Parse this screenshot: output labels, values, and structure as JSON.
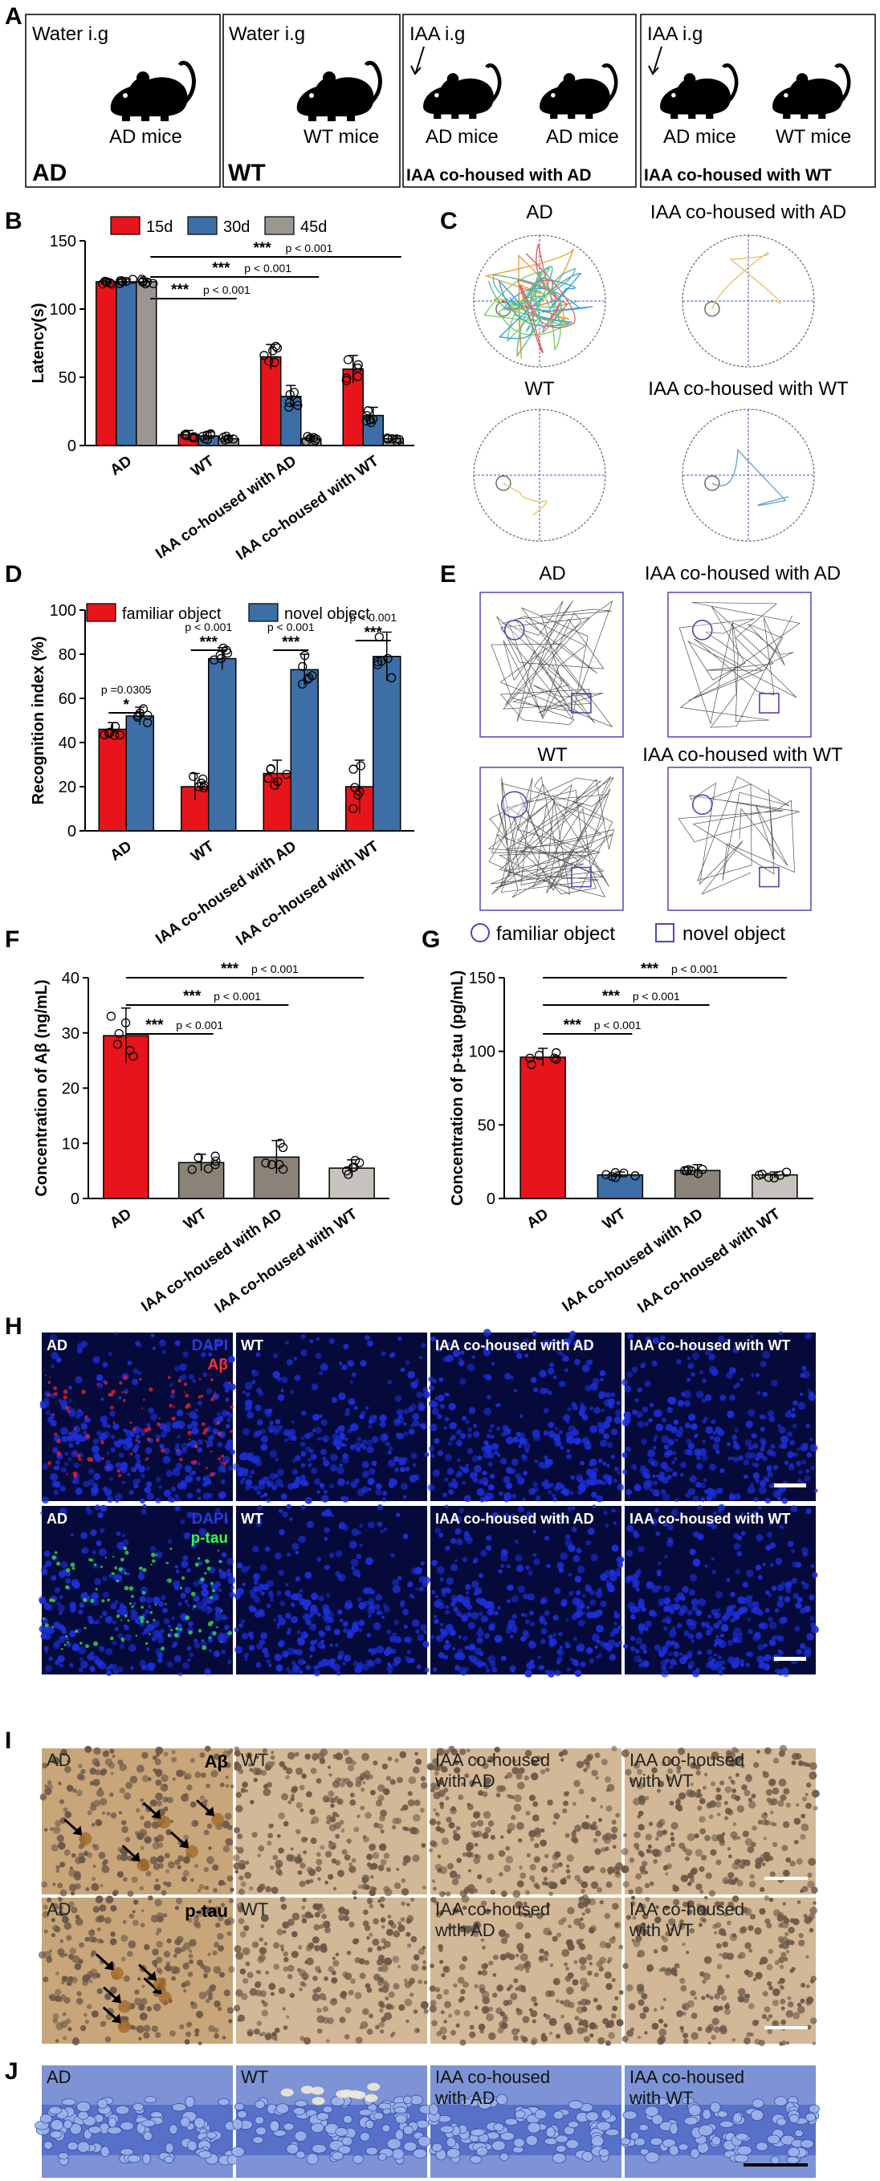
{
  "colors": {
    "red": "#e8141b",
    "blue": "#3d6fa6",
    "gray": "#9b9690",
    "brown": "#8b8378",
    "silver": "#c7c2bb",
    "axis": "#000000",
    "micro_bg": "#050a3a",
    "ihc_bg": "#c9ad86",
    "nissl_bg": "#5a78c8",
    "cell_blue": "#1c2fd8",
    "arena_border": "#4a4ab0"
  },
  "panel_labels": {
    "A": "A",
    "B": "B",
    "C": "C",
    "D": "D",
    "E": "E",
    "F": "F",
    "G": "G",
    "H": "H",
    "I": "I",
    "J": "J"
  },
  "panel_a": {
    "boxes": [
      {
        "treat": "Water i.g",
        "tag": "AD",
        "mice": [
          "AD mice"
        ]
      },
      {
        "treat": "Water i.g",
        "tag": "WT",
        "mice": [
          "WT mice"
        ]
      },
      {
        "treat": "IAA i.g",
        "tag": "IAA co-housed with AD",
        "mice": [
          "AD mice",
          "AD mice"
        ]
      },
      {
        "treat": "IAA i.g",
        "tag": "IAA co-housed with WT",
        "mice": [
          "AD mice",
          "WT mice"
        ]
      }
    ]
  },
  "panel_c": {
    "titles": [
      "AD",
      "IAA co-housed with AD",
      "WT",
      "IAA co-housed with WT"
    ]
  },
  "panel_e": {
    "titles": [
      "AD",
      "IAA co-housed with AD",
      "WT",
      "IAA co-housed with WT"
    ],
    "legend": {
      "familiar": "familiar object",
      "novel": "novel object"
    }
  },
  "panel_h": {
    "row1": {
      "labels": [
        "AD",
        "WT",
        "IAA co-housed with AD",
        "IAA co-housed with WT"
      ],
      "stain1": "DAPI",
      "stain2": "Aβ"
    },
    "row2": {
      "labels": [
        "AD",
        "WT",
        "IAA co-housed with AD",
        "IAA co-housed with WT"
      ],
      "stain1": "DAPI",
      "stain2": "p-tau"
    }
  },
  "panel_i": {
    "row1": {
      "labels": [
        "AD",
        "WT",
        "IAA co-housed\nwith AD",
        "IAA co-housed\nwith WT"
      ],
      "stain": "Aβ"
    },
    "row2": {
      "labels": [
        "AD",
        "WT",
        "IAA co-housed\nwith AD",
        "IAA co-housed\nwith WT"
      ],
      "stain": "p-tau"
    }
  },
  "panel_j": {
    "labels": [
      "AD",
      "WT",
      "IAA co-housed\nwith AD",
      "IAA co-housed\nwith WT"
    ]
  },
  "chart_data": [
    {
      "id": "B",
      "type": "bar",
      "title": "",
      "ylabel": "Latency(s)",
      "ylim": [
        0,
        150
      ],
      "yticks": [
        0,
        50,
        100,
        150
      ],
      "categories": [
        "AD",
        "WT",
        "IAA co-housed with AD",
        "IAA co-housed with WT"
      ],
      "series": [
        {
          "name": "15d",
          "color": "#e8141b",
          "values": [
            120,
            8,
            65,
            56
          ],
          "err": [
            2,
            3,
            9,
            10
          ]
        },
        {
          "name": "30d",
          "color": "#3d6fa6",
          "values": [
            120,
            7,
            36,
            22
          ],
          "err": [
            2,
            3,
            8,
            6
          ]
        },
        {
          "name": "45d",
          "color": "#9b9690",
          "values": [
            120,
            5,
            5,
            5
          ],
          "err": [
            2,
            2,
            2,
            2
          ]
        }
      ],
      "brackets": [
        {
          "label": "***",
          "p": "p < 0.001"
        },
        {
          "label": "***",
          "p": "p < 0.001"
        },
        {
          "label": "***",
          "p": "p < 0.001"
        }
      ]
    },
    {
      "id": "D",
      "type": "bar",
      "title": "",
      "ylabel": "Recognition index (%)",
      "ylim": [
        0,
        100
      ],
      "yticks": [
        0,
        20,
        40,
        60,
        80,
        100
      ],
      "categories": [
        "AD",
        "WT",
        "IAA co-housed with AD",
        "IAA co-housed with WT"
      ],
      "series": [
        {
          "name": "familiar object",
          "color": "#e8141b",
          "values": [
            46,
            20,
            26,
            20
          ],
          "err": [
            3,
            6,
            6,
            12
          ]
        },
        {
          "name": "novel object",
          "color": "#3d6fa6",
          "values": [
            52,
            78,
            73,
            79
          ],
          "err": [
            4,
            5,
            7,
            11
          ]
        }
      ],
      "sig": [
        {
          "stars": "*",
          "p": "p =0.0305"
        },
        {
          "stars": "***",
          "p": "p < 0.001"
        },
        {
          "stars": "***",
          "p": "p < 0.001"
        },
        {
          "stars": "***",
          "p": "p < 0.001"
        }
      ]
    },
    {
      "id": "F",
      "type": "bar",
      "title": "",
      "ylabel": "Concentration of Aβ (ng/mL)",
      "ylim": [
        0,
        40
      ],
      "yticks": [
        0,
        10,
        20,
        30,
        40
      ],
      "categories": [
        "AD",
        "WT",
        "IAA co-housed with AD",
        "IAA co-housed with WT"
      ],
      "values": [
        29.5,
        6.5,
        7.5,
        5.5
      ],
      "err": [
        5,
        1.5,
        3,
        1.5
      ],
      "colors": [
        "#e8141b",
        "#8b8378",
        "#8b8378",
        "#c7c2bb"
      ],
      "brackets": [
        {
          "label": "***",
          "p": "p < 0.001"
        },
        {
          "label": "***",
          "p": "p < 0.001"
        },
        {
          "label": "***",
          "p": "p < 0.001"
        }
      ]
    },
    {
      "id": "G",
      "type": "bar",
      "title": "",
      "ylabel": "Concentration of p-tau (pg/mL)",
      "ylim": [
        0,
        150
      ],
      "yticks": [
        0,
        50,
        100,
        150
      ],
      "categories": [
        "AD",
        "WT",
        "IAA co-housed with AD",
        "IAA co-housed with WT"
      ],
      "values": [
        96,
        16,
        19,
        16
      ],
      "err": [
        6,
        2,
        4,
        2
      ],
      "colors": [
        "#e8141b",
        "#3d6fa6",
        "#8b8378",
        "#c7c2bb"
      ],
      "brackets": [
        {
          "label": "***",
          "p": "p < 0.001"
        },
        {
          "label": "***",
          "p": "p < 0.001"
        },
        {
          "label": "***",
          "p": "p < 0.001"
        }
      ]
    }
  ]
}
